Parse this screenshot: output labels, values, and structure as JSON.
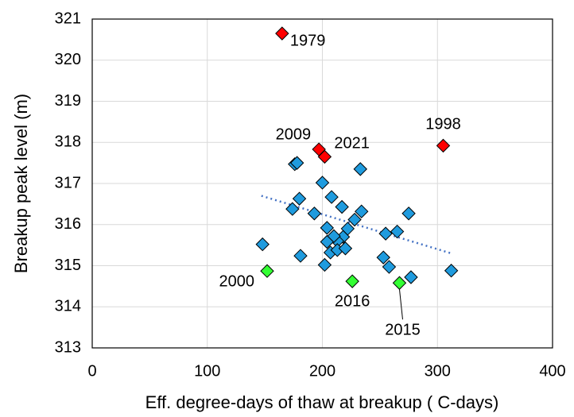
{
  "chart_data": {
    "type": "scatter",
    "xlabel": "Eff. degree-days of thaw at breakup ( C-days)",
    "ylabel": "Breakup peak level (m)",
    "xlim": [
      0,
      400
    ],
    "ylim": [
      313,
      321
    ],
    "xticks": [
      0,
      100,
      200,
      300,
      400
    ],
    "yticks": [
      313,
      314,
      315,
      316,
      317,
      318,
      319,
      320,
      321
    ],
    "grid": true,
    "series": [
      {
        "color": "#1f9bde",
        "x": [
          148,
          176,
          178,
          174,
          180,
          181,
          193,
          200,
          208,
          217,
          233,
          234,
          228,
          222,
          218,
          213,
          210,
          204,
          204,
          207,
          213,
          220,
          202,
          253,
          255,
          265,
          258,
          275,
          277,
          312
        ],
        "y": [
          315.52,
          317.47,
          317.5,
          316.38,
          316.63,
          315.24,
          316.27,
          317.02,
          316.67,
          316.43,
          317.35,
          316.32,
          316.12,
          315.9,
          315.7,
          315.6,
          315.72,
          315.92,
          315.58,
          315.32,
          315.38,
          315.42,
          315.02,
          315.2,
          315.78,
          315.83,
          314.97,
          316.27,
          314.72,
          314.88
        ]
      },
      {
        "color": "#ff0000",
        "x": [
          165,
          197,
          202,
          305
        ],
        "y": [
          320.65,
          317.83,
          317.65,
          317.92
        ],
        "labels": [
          "1979",
          "2009",
          "2021",
          "1998"
        ]
      },
      {
        "color": "#33ff33",
        "x": [
          152,
          226,
          267
        ],
        "y": [
          314.87,
          314.62,
          314.58
        ],
        "labels": [
          "2000",
          "2016",
          "2015"
        ]
      }
    ],
    "trendline": {
      "color": "#4472c4",
      "x": [
        147,
        312
      ],
      "y": [
        316.7,
        315.3
      ]
    }
  }
}
